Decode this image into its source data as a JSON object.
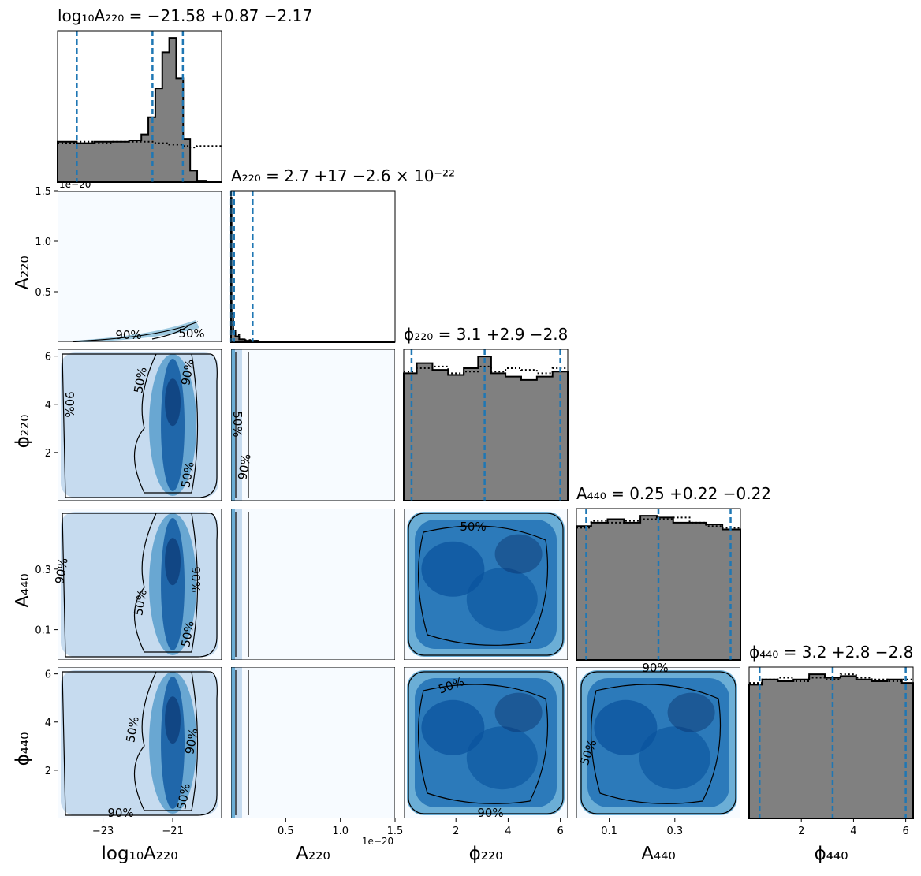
{
  "chart_data": {
    "type": "corner",
    "parameters": [
      {
        "key": "logA220",
        "label": "log₁₀A₂₂₀",
        "axis_label": "log₁₀A₂₂₀",
        "range": [
          -24.3,
          -19.6
        ],
        "ticks": [
          -23,
          -21
        ],
        "tick_labels": [
          "−23",
          "−21"
        ],
        "y_ticks": [],
        "y_tick_labels": [],
        "offset_text": "",
        "title": "log₁₀A₂₂₀ = −21.58 +0.87 −2.17",
        "median": -21.58,
        "err_plus": 0.87,
        "err_minus": 2.17
      },
      {
        "key": "A220",
        "label": "A₂₂₀",
        "axis_label": "A₂₂₀",
        "range": [
          0,
          1.5
        ],
        "ticks": [
          0.5,
          1.0,
          1.5
        ],
        "tick_labels": [
          "0.5",
          "1.0",
          "1.5"
        ],
        "y_ticks": [
          0.5,
          1.0,
          1.5
        ],
        "y_tick_labels": [
          "0.5",
          "1.0",
          "1.5"
        ],
        "offset_text": "1e−20",
        "title": "A₂₂₀ = 2.7 +17 −2.6 × 10⁻²²",
        "median": 0.027,
        "err_plus": 0.17,
        "err_minus": 0.026
      },
      {
        "key": "phi220",
        "label": "ϕ₂₂₀",
        "axis_label": "ϕ₂₂₀",
        "range": [
          0,
          6.283
        ],
        "ticks": [
          2,
          4,
          6
        ],
        "tick_labels": [
          "2",
          "4",
          "6"
        ],
        "y_ticks": [
          2,
          4,
          6
        ],
        "y_tick_labels": [
          "2",
          "4",
          "6"
        ],
        "offset_text": "",
        "title": "ϕ₂₂₀ = 3.1 +2.9 −2.8",
        "median": 3.1,
        "err_plus": 2.9,
        "err_minus": 2.8
      },
      {
        "key": "A440",
        "label": "A₄₄₀",
        "axis_label": "A₄₄₀",
        "range": [
          0,
          0.5
        ],
        "ticks": [
          0.1,
          0.3
        ],
        "tick_labels": [
          "0.1",
          "0.3"
        ],
        "y_ticks": [
          0.1,
          0.3
        ],
        "y_tick_labels": [
          "0.1",
          "0.3"
        ],
        "offset_text": "",
        "title": "A₄₄₀ = 0.25 +0.22 −0.22",
        "median": 0.25,
        "err_plus": 0.22,
        "err_minus": 0.22
      },
      {
        "key": "phi440",
        "label": "ϕ₄₄₀",
        "axis_label": "ϕ₄₄₀",
        "range": [
          0,
          6.283
        ],
        "ticks": [
          2,
          4,
          6
        ],
        "tick_labels": [
          "2",
          "4",
          "6"
        ],
        "y_ticks": [
          2,
          4,
          6
        ],
        "y_tick_labels": [
          "2",
          "4",
          "6"
        ],
        "offset_text": "",
        "title": "ϕ₄₄₀ = 3.2 +2.8 −2.8",
        "median": 3.2,
        "err_plus": 2.8,
        "err_minus": 2.8
      }
    ],
    "contour_levels": [
      "50%",
      "90%"
    ],
    "diagonal_histograms": [
      {
        "param": "logA220",
        "x": [
          -24.3,
          -24.0,
          -23.5,
          -23.0,
          -22.5,
          -22.0,
          -21.8,
          -21.6,
          -21.4,
          -21.2,
          -21.0,
          -20.8,
          -20.6,
          -20.4,
          -20.2,
          -19.9
        ],
        "posterior": [
          0.28,
          0.28,
          0.27,
          0.28,
          0.28,
          0.29,
          0.33,
          0.45,
          0.65,
          0.9,
          1.0,
          0.72,
          0.3,
          0.08,
          0.01,
          0.0
        ],
        "prior": [
          0.27,
          0.27,
          0.28,
          0.27,
          0.28,
          0.28,
          0.28,
          0.28,
          0.27,
          0.27,
          0.26,
          0.26,
          0.25,
          0.24,
          0.25,
          0.25
        ],
        "quantiles": [
          -23.75,
          -21.58,
          -20.71
        ]
      },
      {
        "param": "A220",
        "x": [
          0.0,
          0.01,
          0.03,
          0.05,
          0.1,
          0.15,
          0.2,
          0.3,
          0.5,
          1.0,
          1.5
        ],
        "posterior": [
          1.0,
          0.2,
          0.07,
          0.04,
          0.02,
          0.01,
          0.01,
          0.005,
          0.003,
          0.0,
          0.0
        ],
        "prior": [
          0.22,
          0.18,
          0.08,
          0.05,
          0.02,
          0.015,
          0.01,
          0.005,
          0.003,
          0.002,
          0.001
        ],
        "quantiles": [
          0.001,
          0.027,
          0.197
        ]
      },
      {
        "param": "phi220",
        "x": [
          0.2,
          0.8,
          1.4,
          2.0,
          2.6,
          3.1,
          3.6,
          4.2,
          4.8,
          5.4,
          6.0
        ],
        "posterior": [
          0.76,
          0.82,
          0.78,
          0.75,
          0.79,
          0.86,
          0.76,
          0.74,
          0.72,
          0.74,
          0.77
        ],
        "prior": [
          0.77,
          0.79,
          0.8,
          0.76,
          0.77,
          0.8,
          0.77,
          0.79,
          0.78,
          0.76,
          0.79
        ],
        "quantiles": [
          0.3,
          3.1,
          6.0
        ]
      },
      {
        "param": "A440",
        "x": [
          0.02,
          0.07,
          0.12,
          0.17,
          0.22,
          0.27,
          0.32,
          0.37,
          0.42,
          0.47
        ],
        "posterior": [
          0.78,
          0.8,
          0.82,
          0.8,
          0.84,
          0.83,
          0.8,
          0.8,
          0.79,
          0.76
        ],
        "prior": [
          0.77,
          0.81,
          0.8,
          0.81,
          0.82,
          0.82,
          0.83,
          0.8,
          0.78,
          0.77
        ],
        "quantiles": [
          0.03,
          0.25,
          0.47
        ]
      },
      {
        "param": "phi440",
        "x": [
          0.2,
          0.8,
          1.4,
          2.0,
          2.6,
          3.2,
          3.8,
          4.4,
          5.0,
          5.6,
          6.1
        ],
        "posterior": [
          0.77,
          0.8,
          0.79,
          0.8,
          0.83,
          0.81,
          0.82,
          0.8,
          0.79,
          0.8,
          0.78
        ],
        "prior": [
          0.78,
          0.8,
          0.81,
          0.79,
          0.81,
          0.8,
          0.83,
          0.81,
          0.8,
          0.79,
          0.8
        ],
        "quantiles": [
          0.4,
          3.2,
          6.0
        ]
      }
    ],
    "grid": false,
    "colors": {
      "hist_fill": "#808080",
      "hist_line": "#000000",
      "quantile_line": "#1f77b4",
      "density_low": "#f7fbff",
      "density_high": "#08306b",
      "contour": "#000000"
    }
  }
}
